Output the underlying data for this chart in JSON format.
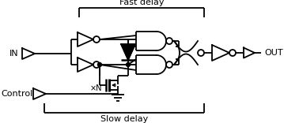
{
  "bg_color": "#ffffff",
  "line_color": "#000000",
  "line_width": 1.3,
  "text_color": "#000000",
  "figsize": [
    3.59,
    1.56
  ],
  "dpi": 100,
  "fast_delay_label": "Fast delay",
  "slow_delay_label": "Slow delay",
  "in_label": "IN",
  "out_label": "OUT",
  "control_label": "Control",
  "xn_label": "×N"
}
